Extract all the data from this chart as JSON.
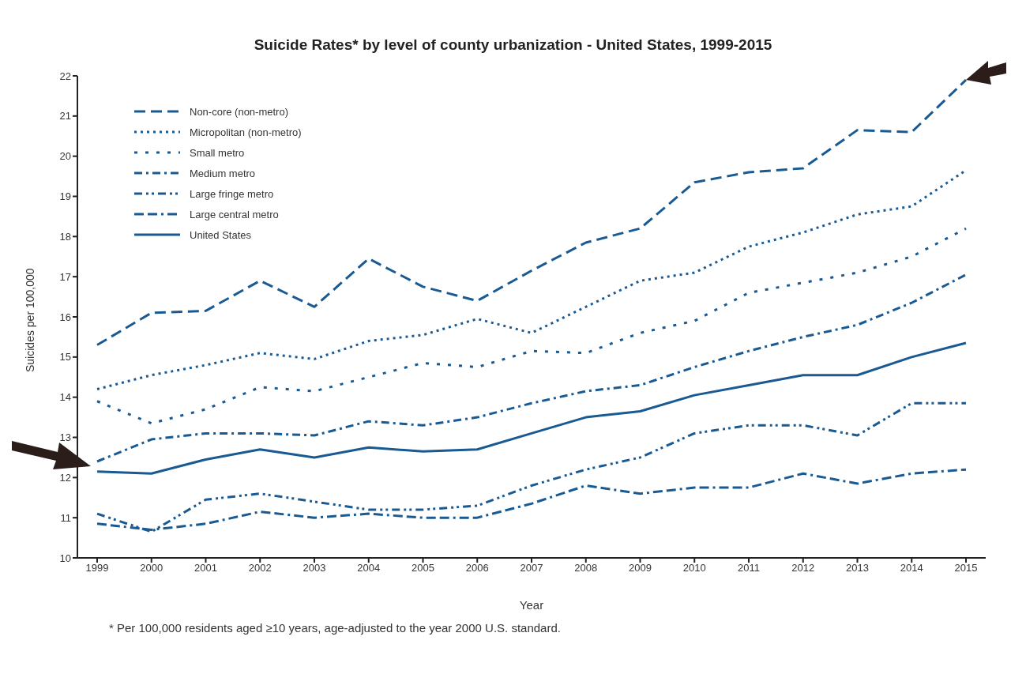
{
  "chart_data": {
    "type": "line",
    "title": "Suicide Rates* by level of county urbanization - United States, 1999-2015",
    "xlabel": "Year",
    "ylabel": "Suicides per 100,000",
    "categories": [
      "1999",
      "2000",
      "2001",
      "2002",
      "2003",
      "2004",
      "2005",
      "2006",
      "2007",
      "2008",
      "2009",
      "2010",
      "2011",
      "2012",
      "2013",
      "2014",
      "2015"
    ],
    "series": [
      {
        "name": "Non-core (non-metro)",
        "color": "#1a5a93",
        "line_style": "dashed",
        "values": [
          15.3,
          16.1,
          16.15,
          16.9,
          16.25,
          17.45,
          16.75,
          16.4,
          17.15,
          17.85,
          18.2,
          19.35,
          19.6,
          19.7,
          20.65,
          20.6,
          21.9
        ]
      },
      {
        "name": "Micropolitan (non-metro)",
        "color": "#1a5a93",
        "line_style": "dotted",
        "values": [
          14.2,
          14.55,
          14.8,
          15.1,
          14.95,
          15.4,
          15.55,
          15.95,
          15.6,
          16.25,
          16.9,
          17.1,
          17.75,
          18.1,
          18.55,
          18.75,
          19.65
        ]
      },
      {
        "name": "Small metro",
        "color": "#1a5a93",
        "line_style": "dotted",
        "values": [
          13.9,
          13.35,
          13.7,
          14.25,
          14.15,
          14.5,
          14.85,
          14.75,
          15.15,
          15.1,
          15.6,
          15.9,
          16.6,
          16.85,
          17.1,
          17.5,
          18.2
        ]
      },
      {
        "name": "Medium metro",
        "color": "#1a5a93",
        "line_style": "dashed",
        "values": [
          12.4,
          12.95,
          13.1,
          13.1,
          13.05,
          13.4,
          13.3,
          13.5,
          13.85,
          14.15,
          14.3,
          14.75,
          15.15,
          15.5,
          15.8,
          16.35,
          17.05
        ]
      },
      {
        "name": "Large fringe metro",
        "color": "#1a5a93",
        "line_style": "dashed",
        "values": [
          11.1,
          10.65,
          11.45,
          11.6,
          11.4,
          11.2,
          11.2,
          11.3,
          11.8,
          12.2,
          12.5,
          13.1,
          13.3,
          13.3,
          13.05,
          13.85,
          13.85
        ]
      },
      {
        "name": "Large central metro",
        "color": "#1a5a93",
        "line_style": "dashed",
        "values": [
          10.85,
          10.7,
          10.85,
          11.15,
          11.0,
          11.1,
          11.0,
          11.0,
          11.35,
          11.8,
          11.6,
          11.75,
          11.75,
          12.1,
          11.85,
          12.1,
          12.2
        ]
      },
      {
        "name": "United States",
        "color": "#1a5a93",
        "line_style": "solid",
        "values": [
          12.15,
          12.1,
          12.45,
          12.7,
          12.5,
          12.75,
          12.65,
          12.7,
          13.1,
          13.5,
          13.65,
          14.05,
          14.3,
          14.55,
          14.55,
          15.0,
          15.35
        ]
      }
    ],
    "ylim": [
      10,
      22
    ],
    "yticks": [
      10,
      11,
      12,
      13,
      14,
      15,
      16,
      17,
      18,
      19,
      20,
      21,
      22
    ],
    "legend": "top left",
    "marker": "none",
    "annotations": [
      "* Per 100,000 residents aged ≥10 years, age-adjusted to the year 2000 U.S. standard."
    ]
  }
}
